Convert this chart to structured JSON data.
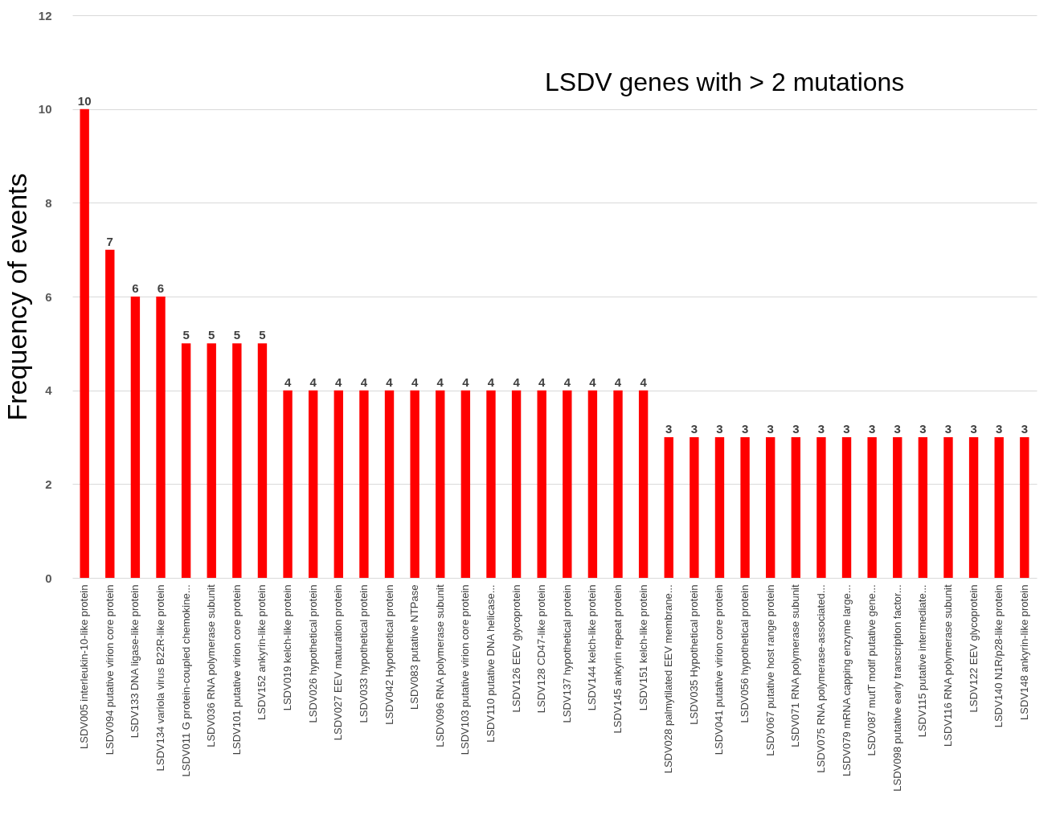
{
  "chart_data": {
    "type": "bar",
    "title": "LSDV genes with > 2 mutations",
    "ylabel": "Frequency of events",
    "categories": [
      "LSDV005 interleukin-10-like protein",
      "LSDV094 putative virion core protein",
      "LSDV133 DNA ligase-like protein",
      "LSDV134  variola virus B22R-like protein",
      "LSDV011 G protein-coupled chemokine...",
      "LSDV036 RNA polymerase subunit",
      "LSDV101 putative virion core protein",
      "LSDV152 ankyrin-like protein",
      "LSDV019 kelch-like protein",
      "LSDV026 hypothetical protein",
      "LSDV027 EEV maturation protein",
      "LSDV033 hypothetical protein",
      "LSDV042 Hypothetical protein",
      "LSDV083 putative NTPase",
      "LSDV096 RNA polymerase subunit",
      "LSDV103 putative virion core protein",
      "LSDV110  putative DNA helicase...",
      "LSDV126 EEV glycoprotein",
      "LSDV128 CD47-like protein",
      "LSDV137 hypothetical protein",
      "LSDV144 kelch-like protein",
      "LSDV145 ankyrin repeat protein",
      "LSDV151 kelch-like protein",
      "LSDV028 palmytilated EEV membrane...",
      "LSDV035 Hypothetical protein",
      "LSDV041 putative virion core protein",
      "LSDV056 hypothetical protein",
      "LSDV067 putative host range protein",
      "LSDV071  RNA polymerase subunit",
      "LSDV075 RNA polymerase-associated...",
      "LSDV079  mRNA capping enzyme large...",
      "LSDV087 mutT motif putative gene...",
      "LSDV098 putative early transcription factor...",
      "LSDV115 putative intermediate...",
      "LSDV116 RNA polymerase subunit",
      "LSDV122 EEV glycoprotein",
      "LSDV140 N1R/p28-like protein",
      "LSDV148 ankyrin-like protein"
    ],
    "values": [
      10,
      7,
      6,
      6,
      5,
      5,
      5,
      5,
      4,
      4,
      4,
      4,
      4,
      4,
      4,
      4,
      4,
      4,
      4,
      4,
      4,
      4,
      4,
      3,
      3,
      3,
      3,
      3,
      3,
      3,
      3,
      3,
      3,
      3,
      3,
      3,
      3,
      3
    ],
    "color": "#ff0000",
    "ylim": [
      0,
      12
    ],
    "yticks": [
      0,
      2,
      4,
      6,
      8,
      10,
      12
    ],
    "grid": "y",
    "data_labels": true
  }
}
